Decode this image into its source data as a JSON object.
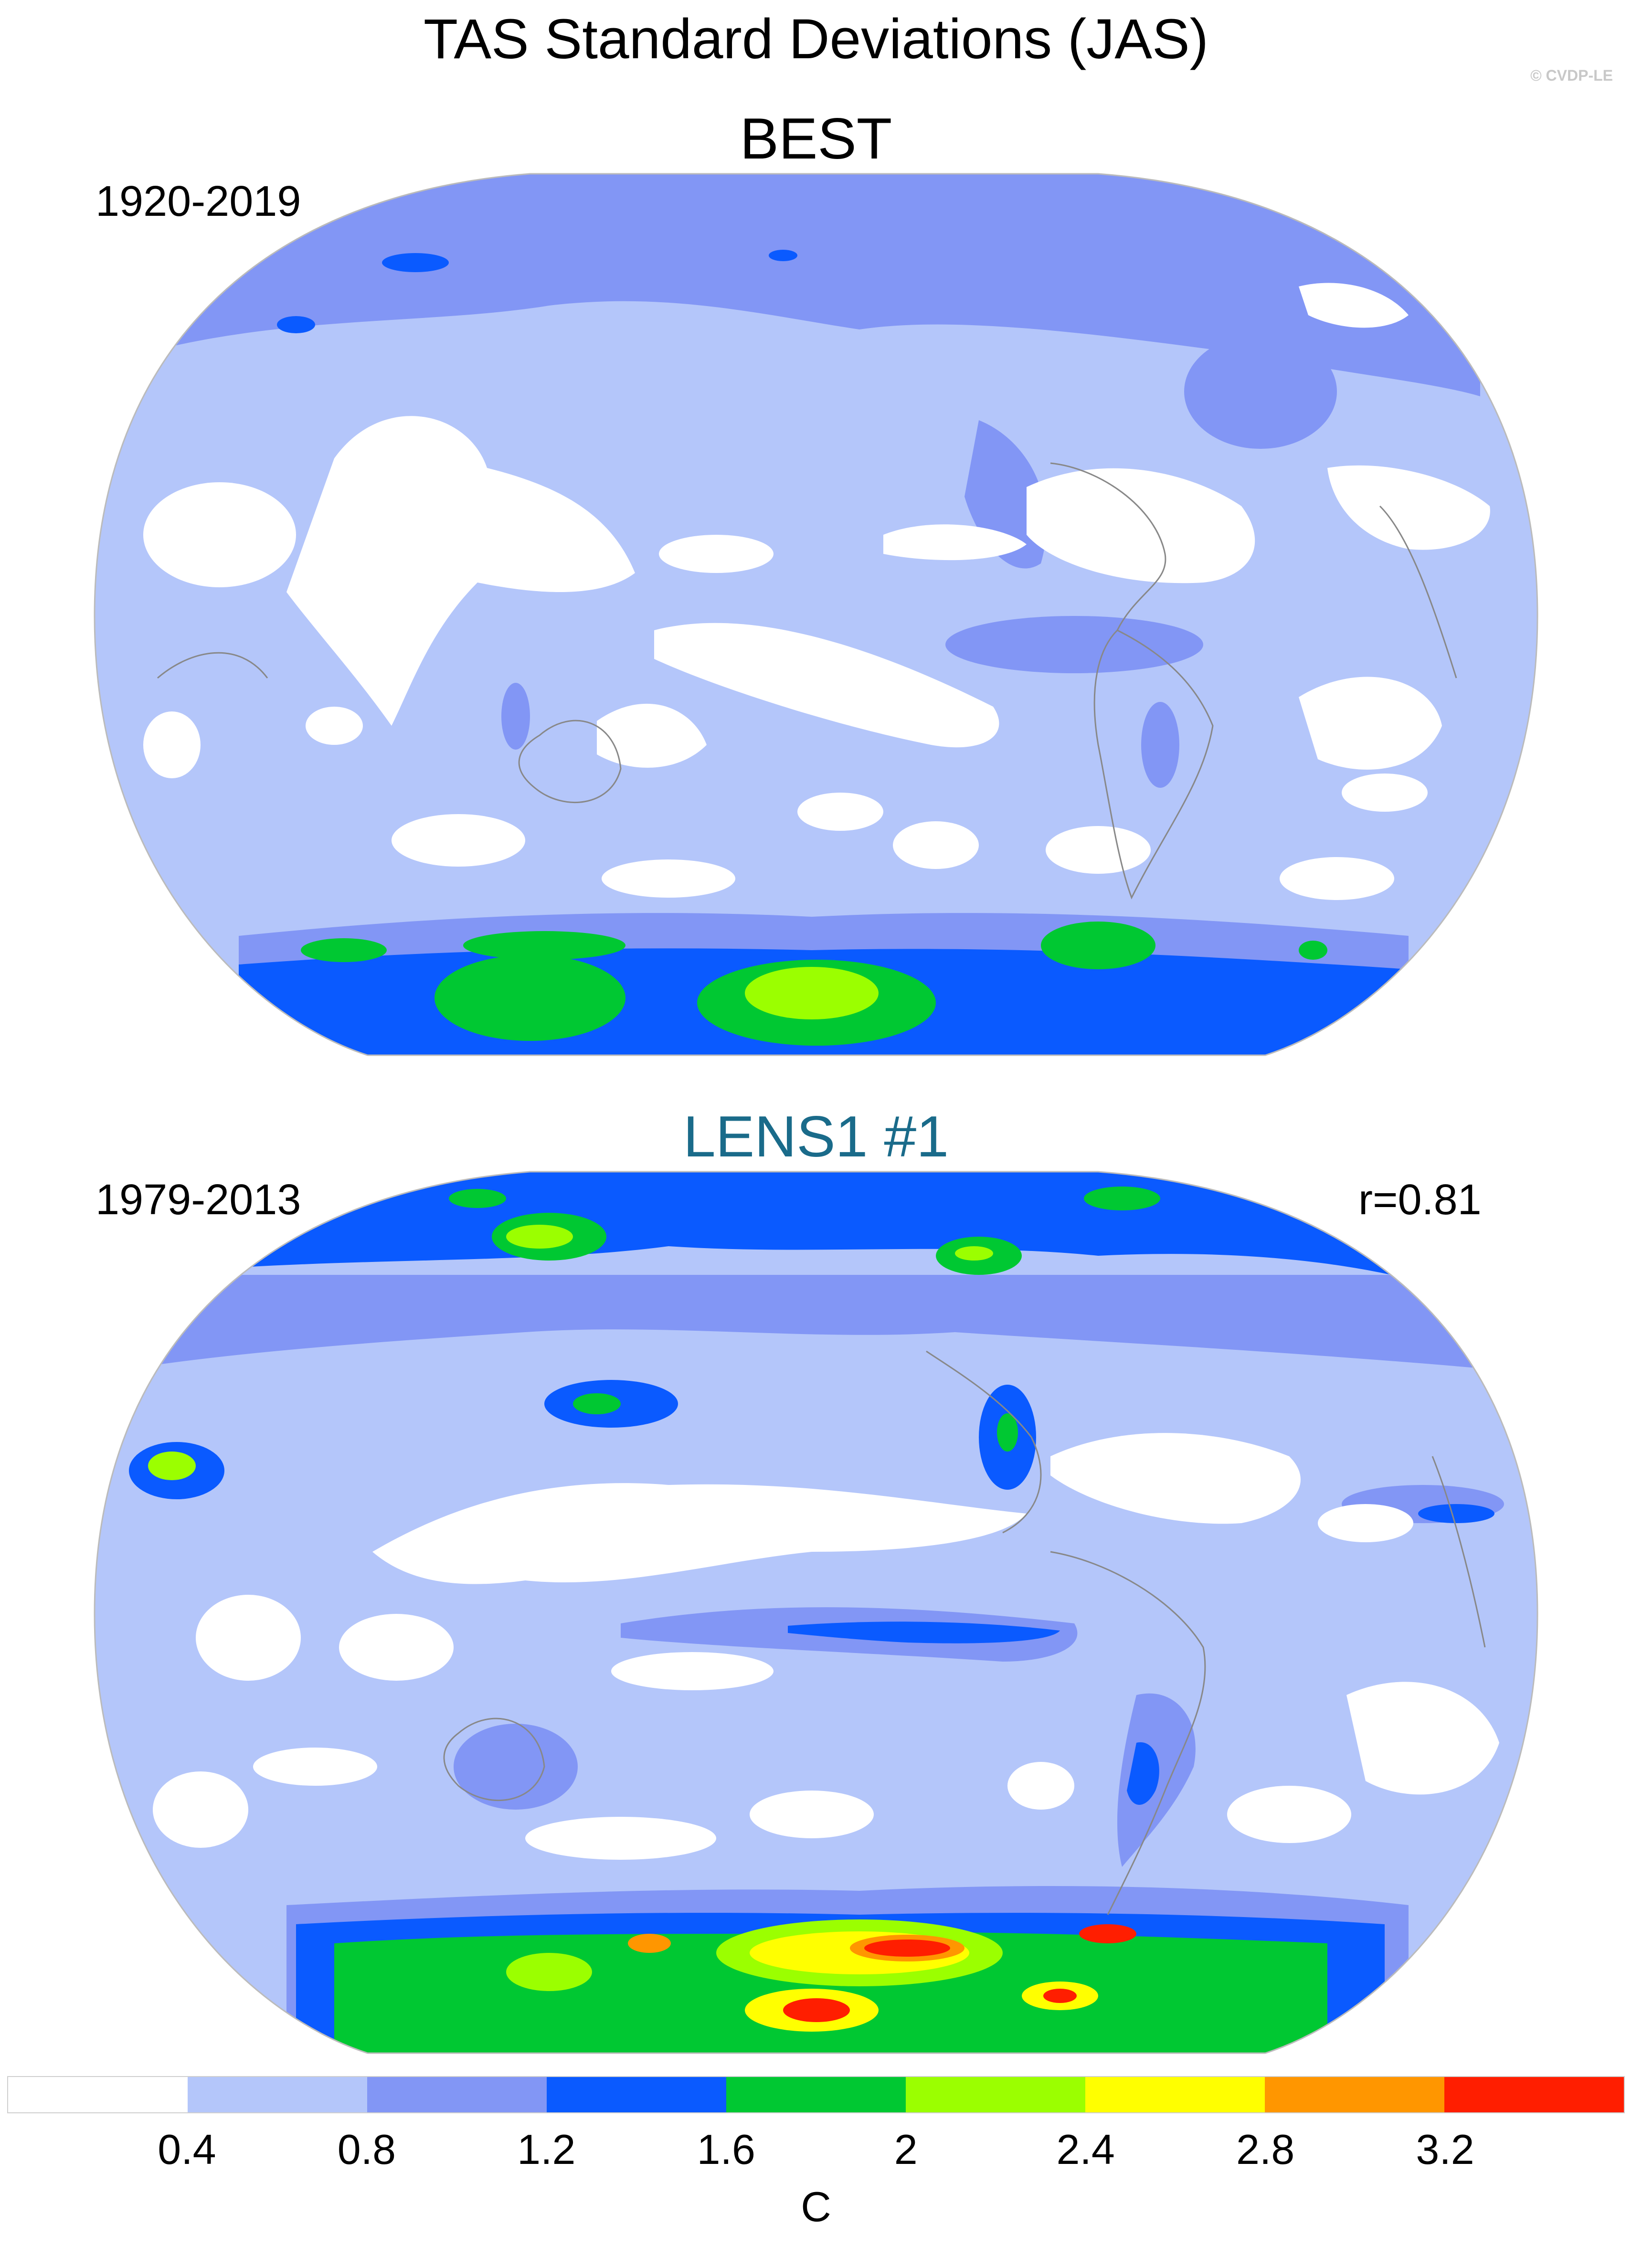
{
  "title": "TAS Standard Deviations (JAS)",
  "credit": "© CVDP-LE",
  "panels": [
    {
      "name": "BEST",
      "period": "1920-2019",
      "stat": ""
    },
    {
      "name": "LENS1 #1",
      "period": "1979-2013",
      "stat": "r=0.81"
    }
  ],
  "colorbar": {
    "unit": "C",
    "levels": [
      "0.4",
      "0.8",
      "1.2",
      "1.6",
      "2",
      "2.4",
      "2.8",
      "3.2"
    ],
    "colors": [
      "#ffffff",
      "#b4c6fa",
      "#8296f5",
      "#0a5aff",
      "#00c832",
      "#9bff00",
      "#ffff00",
      "#ff9600",
      "#ff1e00"
    ]
  },
  "colors": {
    "model_title": "#1a6b8a",
    "coastline": "#888888"
  }
}
